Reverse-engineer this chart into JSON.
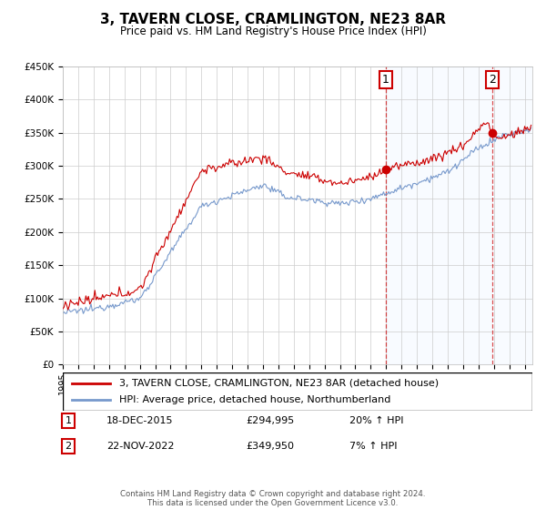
{
  "title": "3, TAVERN CLOSE, CRAMLINGTON, NE23 8AR",
  "subtitle": "Price paid vs. HM Land Registry's House Price Index (HPI)",
  "ylabel_ticks": [
    "£0",
    "£50K",
    "£100K",
    "£150K",
    "£200K",
    "£250K",
    "£300K",
    "£350K",
    "£400K",
    "£450K"
  ],
  "ylim": [
    0,
    450000
  ],
  "xlim_start": 1995.0,
  "xlim_end": 2025.5,
  "sale1_x": 2015.96,
  "sale1_y": 294995,
  "sale1_label": "1",
  "sale1_date": "18-DEC-2015",
  "sale1_price": "£294,995",
  "sale1_hpi": "20% ↑ HPI",
  "sale2_x": 2022.9,
  "sale2_y": 349950,
  "sale2_label": "2",
  "sale2_date": "22-NOV-2022",
  "sale2_price": "£349,950",
  "sale2_hpi": "7% ↑ HPI",
  "line1_color": "#cc0000",
  "line2_color": "#7799cc",
  "bg_color": "#ffffff",
  "grid_color": "#cccccc",
  "highlight_color": "#ddeeff",
  "legend1": "3, TAVERN CLOSE, CRAMLINGTON, NE23 8AR (detached house)",
  "legend2": "HPI: Average price, detached house, Northumberland",
  "footer": "Contains HM Land Registry data © Crown copyright and database right 2024.\nThis data is licensed under the Open Government Licence v3.0."
}
